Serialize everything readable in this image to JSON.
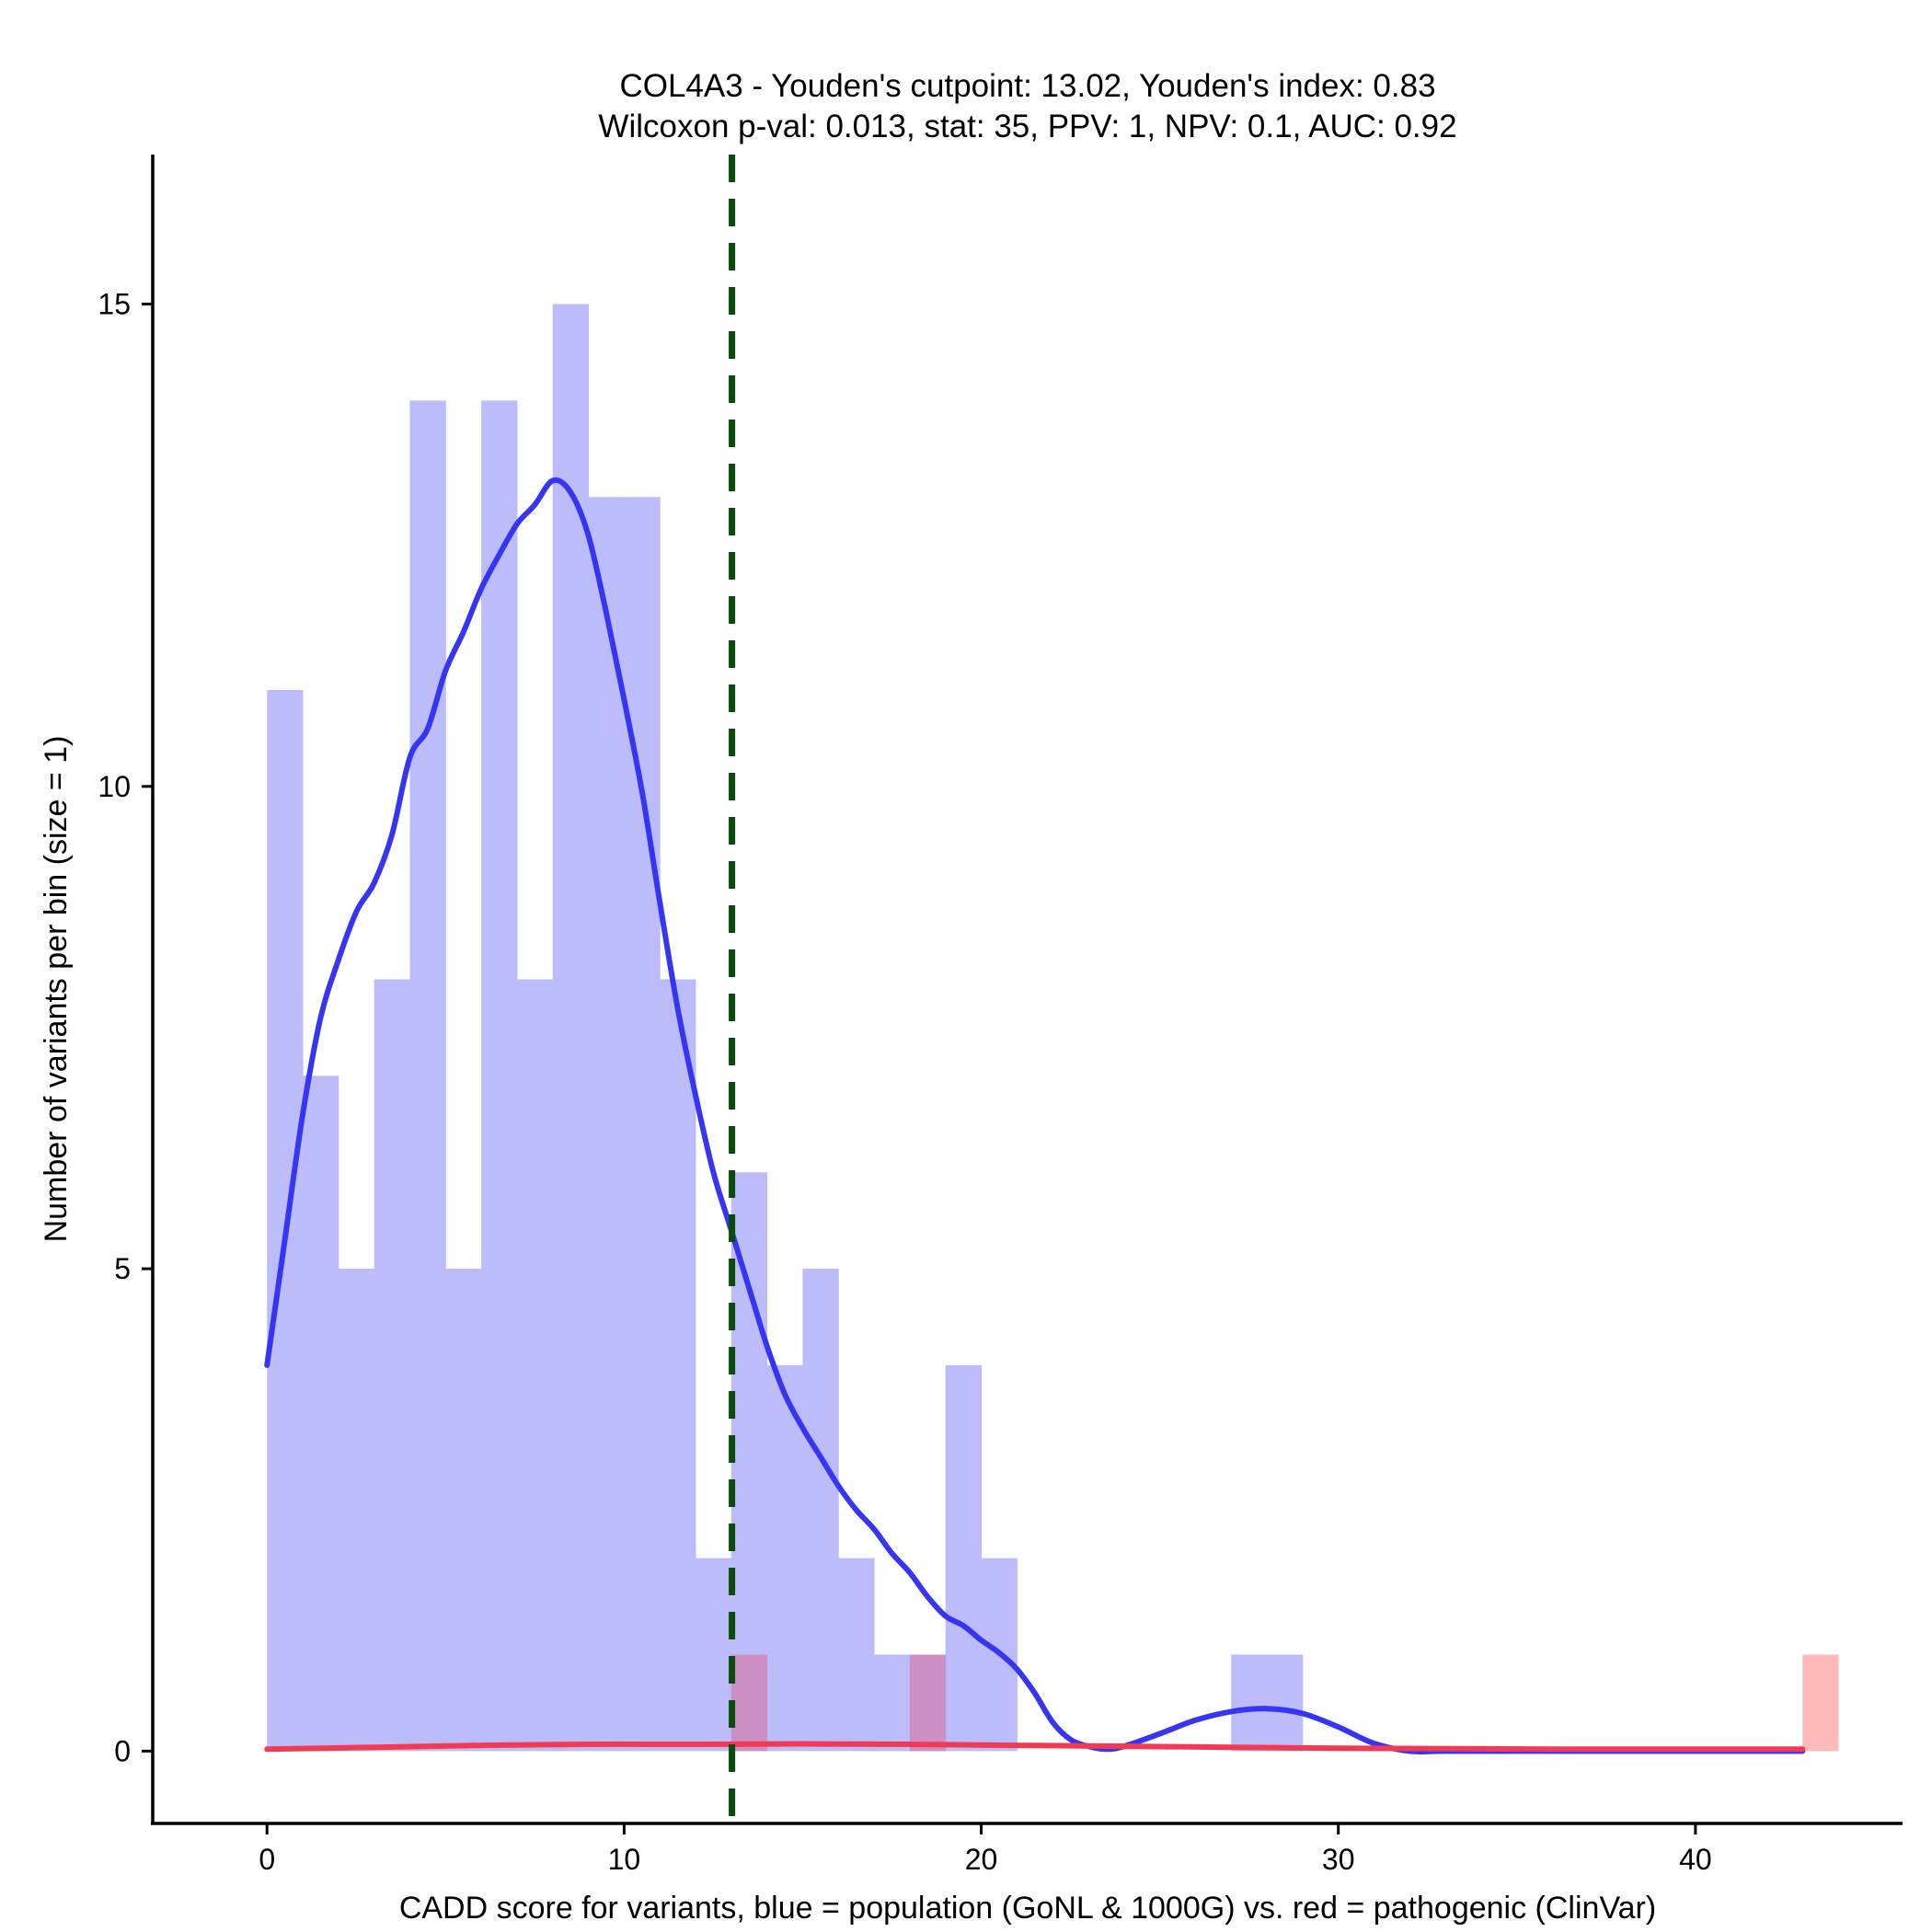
{
  "chart_data": {
    "type": "histogram",
    "title_line1": "COL4A3 - Youden's cutpoint: 13.02, Youden's index: 0.83",
    "title_line2": "Wilcoxon p-val: 0.013, stat: 35, PPV: 1, NPV: 0.1, AUC: 0.92",
    "xlabel": "CADD score for variants, blue = population (GoNL & 1000G) vs. red = pathogenic (ClinVar)",
    "ylabel": "Number of variants per bin (size = 1)",
    "xlim": [
      -3.2,
      45.8
    ],
    "ylim": [
      -0.75,
      16.55
    ],
    "x_ticks": [
      0,
      10,
      20,
      30,
      40
    ],
    "y_ticks": [
      0,
      5,
      10,
      15
    ],
    "bin_size": 1,
    "colors": {
      "population_bar": "#bcbcfb",
      "pathogenic_bar": "#ffbaba",
      "overlap_bar": "#cc90c4",
      "population_density": "#3535f3",
      "pathogenic_density": "#f23a55",
      "cutpoint_line": "#0a4a0a"
    },
    "cutpoint": 13.02,
    "series": [
      {
        "name": "population (GoNL & 1000G)",
        "bins": [
          [
            0,
            11
          ],
          [
            1,
            7
          ],
          [
            2,
            5
          ],
          [
            3,
            8
          ],
          [
            4,
            14
          ],
          [
            5,
            5
          ],
          [
            6,
            14
          ],
          [
            7,
            8
          ],
          [
            8,
            15
          ],
          [
            9,
            13
          ],
          [
            10,
            13
          ],
          [
            11,
            8
          ],
          [
            12,
            2
          ],
          [
            13,
            6
          ],
          [
            14,
            4
          ],
          [
            15,
            5
          ],
          [
            16,
            2
          ],
          [
            17,
            1
          ],
          [
            18,
            1
          ],
          [
            19,
            4
          ],
          [
            20,
            2
          ],
          [
            27,
            1
          ],
          [
            28,
            1
          ]
        ]
      },
      {
        "name": "pathogenic (ClinVar)",
        "bins": [
          [
            13,
            1
          ],
          [
            18,
            1
          ],
          [
            43,
            1
          ]
        ]
      }
    ],
    "density_population": [
      [
        0,
        4.0
      ],
      [
        0.5,
        5.3
      ],
      [
        1,
        6.6
      ],
      [
        1.5,
        7.6
      ],
      [
        2,
        8.2
      ],
      [
        2.5,
        8.7
      ],
      [
        3,
        9.0
      ],
      [
        3.5,
        9.5
      ],
      [
        4,
        10.3
      ],
      [
        4.5,
        10.6
      ],
      [
        5,
        11.2
      ],
      [
        5.5,
        11.6
      ],
      [
        6,
        12.05
      ],
      [
        6.5,
        12.4
      ],
      [
        7,
        12.72
      ],
      [
        7.5,
        12.92
      ],
      [
        8,
        13.17
      ],
      [
        8.5,
        13.05
      ],
      [
        9,
        12.6
      ],
      [
        9.5,
        11.8
      ],
      [
        10,
        10.9
      ],
      [
        10.5,
        9.95
      ],
      [
        11,
        8.8
      ],
      [
        11.5,
        7.7
      ],
      [
        12,
        6.8
      ],
      [
        12.5,
        6.0
      ],
      [
        13,
        5.4
      ],
      [
        13.5,
        4.8
      ],
      [
        14,
        4.2
      ],
      [
        14.5,
        3.7
      ],
      [
        15,
        3.35
      ],
      [
        15.5,
        3.05
      ],
      [
        16,
        2.75
      ],
      [
        16.5,
        2.5
      ],
      [
        17,
        2.3
      ],
      [
        17.5,
        2.05
      ],
      [
        18,
        1.85
      ],
      [
        18.5,
        1.6
      ],
      [
        19,
        1.4
      ],
      [
        19.5,
        1.3
      ],
      [
        20,
        1.15
      ],
      [
        20.5,
        1.02
      ],
      [
        21,
        0.85
      ],
      [
        21.5,
        0.6
      ],
      [
        22,
        0.3
      ],
      [
        22.5,
        0.12
      ],
      [
        23,
        0.05
      ],
      [
        23.5,
        0.02
      ],
      [
        24,
        0.05
      ],
      [
        25,
        0.18
      ],
      [
        26,
        0.32
      ],
      [
        27,
        0.41
      ],
      [
        28,
        0.44
      ],
      [
        29,
        0.39
      ],
      [
        30,
        0.25
      ],
      [
        31,
        0.08
      ],
      [
        32,
        0.0
      ],
      [
        33,
        0.0
      ],
      [
        36,
        0.0
      ],
      [
        40,
        0.0
      ],
      [
        43,
        0.0
      ]
    ],
    "density_pathogenic": [
      [
        0,
        0.02
      ],
      [
        3,
        0.04
      ],
      [
        6,
        0.06
      ],
      [
        9,
        0.07
      ],
      [
        12,
        0.07
      ],
      [
        15,
        0.075
      ],
      [
        18,
        0.07
      ],
      [
        21,
        0.06
      ],
      [
        24,
        0.05
      ],
      [
        27,
        0.04
      ],
      [
        30,
        0.03
      ],
      [
        33,
        0.025
      ],
      [
        36,
        0.02
      ],
      [
        40,
        0.02
      ],
      [
        43,
        0.02
      ]
    ]
  }
}
